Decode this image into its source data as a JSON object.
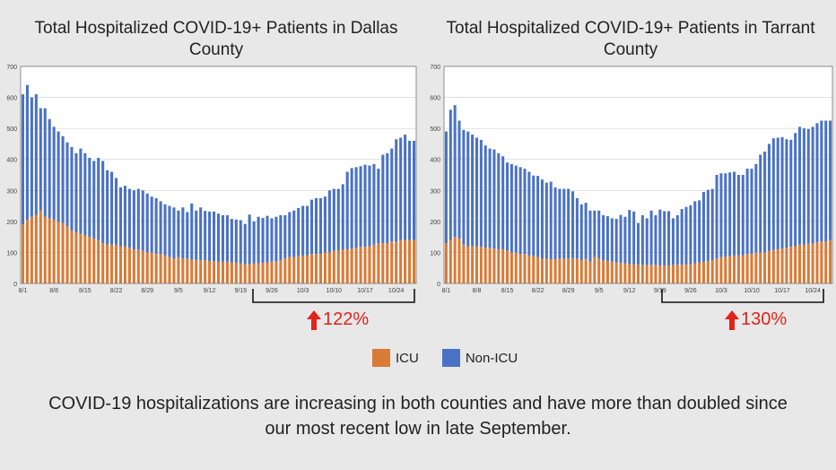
{
  "colors": {
    "icu": "#d97a36",
    "non_icu": "#4a72c4",
    "annotation": "#e2231a",
    "grid": "#d0d0d0"
  },
  "legend": {
    "icu_label": "ICU",
    "non_icu_label": "Non-ICU"
  },
  "caption": "COVID-19 hospitalizations are increasing in both counties and have more than doubled since our most recent low in late September.",
  "chart_data": [
    {
      "type": "bar",
      "stacked": true,
      "title": "Total Hospitalized COVID-19+ Patients in Dallas County",
      "ylim": [
        0,
        700
      ],
      "yticks": [
        0,
        100,
        200,
        300,
        400,
        500,
        600,
        700
      ],
      "xtick_labels": [
        "8/1",
        "8/8",
        "8/15",
        "8/22",
        "8/29",
        "9/5",
        "9/12",
        "9/19",
        "9/26",
        "10/3",
        "10/10",
        "10/17",
        "10/24"
      ],
      "annotation": "122%",
      "series": [
        {
          "name": "ICU",
          "values": [
            190,
            205,
            215,
            220,
            235,
            215,
            210,
            205,
            200,
            195,
            185,
            170,
            165,
            160,
            155,
            150,
            145,
            140,
            130,
            125,
            125,
            125,
            120,
            120,
            115,
            110,
            110,
            105,
            100,
            100,
            95,
            95,
            90,
            85,
            80,
            85,
            80,
            80,
            78,
            75,
            75,
            74,
            72,
            72,
            70,
            70,
            70,
            68,
            66,
            64,
            62,
            62,
            65,
            65,
            66,
            68,
            70,
            70,
            75,
            80,
            85,
            85,
            88,
            90,
            90,
            95,
            95,
            95,
            100,
            100,
            105,
            105,
            110,
            110,
            112,
            115,
            118,
            118,
            120,
            125,
            130,
            130,
            130,
            135,
            135,
            140,
            140,
            140,
            140
          ]
        },
        {
          "name": "Non-ICU",
          "values": [
            420,
            435,
            385,
            390,
            330,
            350,
            320,
            300,
            290,
            280,
            270,
            270,
            255,
            275,
            265,
            255,
            250,
            265,
            265,
            240,
            235,
            215,
            190,
            195,
            190,
            190,
            195,
            195,
            190,
            180,
            180,
            170,
            165,
            165,
            165,
            150,
            165,
            150,
            180,
            160,
            170,
            160,
            160,
            160,
            155,
            150,
            150,
            140,
            140,
            140,
            130,
            160,
            135,
            150,
            145,
            150,
            140,
            145,
            145,
            140,
            145,
            150,
            155,
            160,
            160,
            175,
            180,
            180,
            180,
            200,
            200,
            200,
            210,
            250,
            260,
            260,
            260,
            265,
            260,
            260,
            240,
            285,
            290,
            300,
            330,
            330,
            340,
            320,
            320
          ]
        }
      ]
    },
    {
      "type": "bar",
      "stacked": true,
      "title": "Total Hospitalized COVID-19+ Patients in Tarrant County",
      "ylim": [
        0,
        700
      ],
      "yticks": [
        0,
        100,
        200,
        300,
        400,
        500,
        600,
        700
      ],
      "xtick_labels": [
        "8/1",
        "8/8",
        "8/15",
        "8/22",
        "8/29",
        "9/5",
        "9/12",
        "9/19",
        "9/26",
        "10/3",
        "10/10",
        "10/17",
        "10/24"
      ],
      "annotation": "130%",
      "series": [
        {
          "name": "ICU",
          "values": [
            130,
            140,
            150,
            145,
            125,
            120,
            120,
            120,
            118,
            115,
            115,
            112,
            110,
            110,
            105,
            100,
            100,
            95,
            95,
            90,
            88,
            85,
            80,
            80,
            78,
            78,
            80,
            80,
            80,
            82,
            80,
            75,
            80,
            70,
            85,
            80,
            75,
            72,
            70,
            68,
            66,
            65,
            62,
            62,
            60,
            60,
            60,
            60,
            60,
            58,
            58,
            58,
            60,
            60,
            60,
            62,
            62,
            65,
            68,
            70,
            72,
            75,
            80,
            85,
            85,
            88,
            90,
            90,
            90,
            95,
            95,
            100,
            100,
            100,
            105,
            108,
            110,
            112,
            115,
            118,
            120,
            125,
            125,
            128,
            130,
            132,
            135,
            135,
            140
          ]
        },
        {
          "name": "Non-ICU",
          "values": [
            360,
            420,
            425,
            380,
            370,
            370,
            360,
            350,
            345,
            330,
            320,
            320,
            310,
            300,
            285,
            285,
            280,
            280,
            275,
            270,
            260,
            262,
            255,
            245,
            250,
            232,
            225,
            225,
            225,
            215,
            195,
            180,
            180,
            165,
            150,
            155,
            145,
            145,
            140,
            140,
            155,
            150,
            175,
            170,
            135,
            160,
            150,
            175,
            160,
            180,
            175,
            175,
            150,
            160,
            180,
            185,
            190,
            200,
            200,
            225,
            230,
            230,
            270,
            270,
            270,
            270,
            270,
            260,
            260,
            275,
            275,
            285,
            315,
            325,
            345,
            360,
            360,
            360,
            350,
            345,
            365,
            380,
            375,
            370,
            375,
            385,
            390,
            390,
            385
          ]
        }
      ]
    }
  ]
}
